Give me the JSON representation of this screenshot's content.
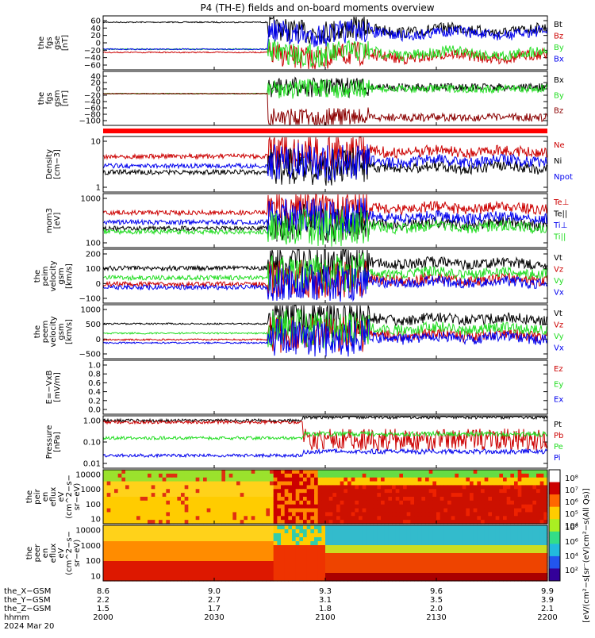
{
  "title": "P4 (TH-E) fields and on-board moments overview",
  "colors": {
    "black": "#000000",
    "red": "#cc0000",
    "green": "#22dd22",
    "blue": "#0000ee",
    "darkred": "#8b0000"
  },
  "chart_data": [
    {
      "type": "line",
      "id": "p1",
      "ylabel": [
        "the",
        "fgs",
        "gse",
        "[nT]"
      ],
      "yticks": [
        "60",
        "40",
        "20",
        "0",
        "−20",
        "−40",
        "−60"
      ],
      "ylim": [
        -70,
        70
      ],
      "series": [
        {
          "name": "Bt",
          "color": "black"
        },
        {
          "name": "Bz",
          "color": "red"
        },
        {
          "name": "By",
          "color": "green"
        },
        {
          "name": "Bx",
          "color": "blue"
        }
      ]
    },
    {
      "type": "line",
      "id": "p2",
      "ylabel": [
        "the",
        "fgs",
        "gsm",
        "[nT]"
      ],
      "yticks": [
        "40",
        "20",
        "0",
        "−20",
        "−40",
        "−60",
        "−80",
        "−100"
      ],
      "ylim": [
        -110,
        45
      ],
      "series": [
        {
          "name": "Bx",
          "color": "black"
        },
        {
          "name": "By",
          "color": "green"
        },
        {
          "name": "Bz",
          "color": "darkred"
        }
      ]
    },
    {
      "type": "line",
      "id": "p3",
      "ylabel": [
        "Density",
        "[cm−3]"
      ],
      "yticks": [
        "10",
        "1"
      ],
      "log": true,
      "series": [
        {
          "name": "Ne",
          "color": "red"
        },
        {
          "name": "Ni",
          "color": "black"
        },
        {
          "name": "Npot",
          "color": "blue"
        }
      ]
    },
    {
      "type": "line",
      "id": "p4",
      "ylabel": [
        "mom3",
        "[eV]"
      ],
      "yticks": [
        "1000",
        "100"
      ],
      "log": true,
      "series": [
        {
          "name": "Te⊥",
          "color": "red"
        },
        {
          "name": "Te||",
          "color": "black"
        },
        {
          "name": "Ti⊥",
          "color": "blue"
        },
        {
          "name": "Ti||",
          "color": "green"
        }
      ]
    },
    {
      "type": "line",
      "id": "p5",
      "ylabel": [
        "the",
        "peim",
        "velocity",
        "gsm",
        "[km/s]"
      ],
      "yticks": [
        "200",
        "100",
        "0",
        "−100"
      ],
      "ylim": [
        -150,
        250
      ],
      "series": [
        {
          "name": "Vt",
          "color": "black"
        },
        {
          "name": "Vz",
          "color": "red"
        },
        {
          "name": "Vy",
          "color": "green"
        },
        {
          "name": "Vx",
          "color": "blue"
        }
      ]
    },
    {
      "type": "line",
      "id": "p6",
      "ylabel": [
        "the",
        "peem",
        "velocity",
        "gsm",
        "[km/s]"
      ],
      "yticks": [
        "1000",
        "500",
        "0",
        "−500"
      ],
      "ylim": [
        -700,
        1200
      ],
      "series": [
        {
          "name": "Vt",
          "color": "black"
        },
        {
          "name": "Vz",
          "color": "red"
        },
        {
          "name": "Vy",
          "color": "green"
        },
        {
          "name": "Vx",
          "color": "blue"
        }
      ]
    },
    {
      "type": "line",
      "id": "p7",
      "ylabel": [
        "E=−VxB",
        "[mV/m]"
      ],
      "yticks": [
        "1.0",
        "0.8",
        "0.6",
        "0.4",
        "0.2",
        "0.0"
      ],
      "ylim": [
        0,
        1
      ],
      "series": [
        {
          "name": "Ez",
          "color": "red"
        },
        {
          "name": "Ey",
          "color": "green"
        },
        {
          "name": "Ex",
          "color": "blue"
        }
      ]
    },
    {
      "type": "line",
      "id": "p8",
      "ylabel": [
        "Pressure",
        "[nPa]"
      ],
      "yticks": [
        "1.00",
        "0.10",
        "0.01"
      ],
      "log": true,
      "series": [
        {
          "name": "Pt",
          "color": "black"
        },
        {
          "name": "Pb",
          "color": "red"
        },
        {
          "name": "Pe",
          "color": "green"
        },
        {
          "name": "Pi",
          "color": "blue"
        }
      ]
    },
    {
      "type": "heatmap",
      "id": "p9",
      "ylabel": [
        "the",
        "peir",
        "en",
        "eflux",
        "eV",
        "(cm^2−s−",
        "sr−eV)"
      ],
      "yticks": [
        "10000",
        "1000",
        "100",
        "10"
      ]
    },
    {
      "type": "heatmap",
      "id": "p10",
      "ylabel": [
        "the",
        "peer",
        "en",
        "eflux",
        "eV",
        "(cm^2−s−",
        "sr−eV)"
      ],
      "yticks": [
        "10000",
        "1000",
        "100",
        "10"
      ]
    }
  ],
  "colorbar": {
    "ticks_top": [
      "10⁸",
      "10⁷",
      "10⁶",
      "10⁵",
      "10⁴"
    ],
    "ticks_bottom": [
      "10⁸",
      "10⁶",
      "10⁴",
      "10²"
    ],
    "label": "[eV/(cm²−s[sr⁻(eV)cm²−s(All Qs)]"
  },
  "xaxis": {
    "rows": [
      {
        "label": "the_X−GSM",
        "values": [
          "8.6",
          "9.0",
          "9.3",
          "9.6",
          "9.9"
        ]
      },
      {
        "label": "the_Y−GSM",
        "values": [
          "2.2",
          "2.7",
          "3.1",
          "3.5",
          "3.9"
        ]
      },
      {
        "label": "the_Z−GSM",
        "values": [
          "1.5",
          "1.7",
          "1.8",
          "2.0",
          "2.1"
        ]
      },
      {
        "label": "hhmm",
        "values": [
          "2000",
          "2030",
          "2100",
          "2130",
          "2200"
        ]
      }
    ],
    "date": "2024 Mar 20"
  }
}
